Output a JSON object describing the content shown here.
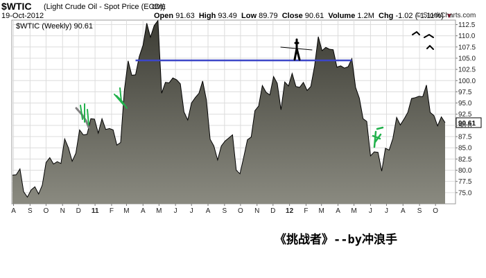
{
  "header": {
    "symbol": "$WTIC",
    "name": "(Light Crude Oil - Spot Price (EOD))",
    "exchange": "CME",
    "date": "19-Oct-2012",
    "open_label": "Open",
    "open": "91.63",
    "high_label": "High",
    "high": "93.49",
    "low_label": "Low",
    "low": "89.79",
    "close_label": "Close",
    "close": "90.61",
    "volume_label": "Volume",
    "volume": "1.2M",
    "chg_label": "Chg",
    "chg": "-1.02 (-1.11%)",
    "brand": "© StockCharts.com"
  },
  "caption": "《挑战者》--by冲浪手",
  "colors": {
    "area_top": "#3c3c34",
    "area_bottom": "#8a8a80",
    "line": "#000000",
    "resistance": "#3c46c8",
    "grid": "#dcdcdc",
    "chg_down": "#a01030",
    "annotation_green": "#22b14c",
    "annotation_gray": "#808080"
  },
  "chart_data": {
    "type": "area",
    "title": "$WTIC (Weekly) 90.61",
    "frequency": "Weekly",
    "last_value": 90.61,
    "ylim": [
      72.5,
      113.5
    ],
    "yticks": [
      75.0,
      77.5,
      80.0,
      82.5,
      85.0,
      87.5,
      90.0,
      92.5,
      95.0,
      97.5,
      100.0,
      102.5,
      105.0,
      107.5,
      110.0,
      112.5
    ],
    "x_tick_labels": [
      "A",
      "S",
      "O",
      "N",
      "D",
      "11",
      "F",
      "M",
      "A",
      "M",
      "J",
      "J",
      "A",
      "S",
      "O",
      "N",
      "D",
      "12",
      "F",
      "M",
      "A",
      "M",
      "J",
      "J",
      "A",
      "S",
      "O"
    ],
    "x_start": "2010-07-30",
    "x_end": "2012-10-19",
    "grid": true,
    "points": [
      [
        "2010-07-30",
        78.9
      ],
      [
        "2010-08-06",
        79.0
      ],
      [
        "2010-08-13",
        80.3
      ],
      [
        "2010-08-20",
        75.2
      ],
      [
        "2010-08-27",
        74.0
      ],
      [
        "2010-09-03",
        75.6
      ],
      [
        "2010-09-10",
        76.3
      ],
      [
        "2010-09-17",
        74.7
      ],
      [
        "2010-09-24",
        76.7
      ],
      [
        "2010-10-01",
        81.7
      ],
      [
        "2010-10-08",
        82.8
      ],
      [
        "2010-10-15",
        81.4
      ],
      [
        "2010-10-22",
        81.9
      ],
      [
        "2010-10-29",
        81.5
      ],
      [
        "2010-11-05",
        87.0
      ],
      [
        "2010-11-12",
        85.0
      ],
      [
        "2010-11-19",
        82.0
      ],
      [
        "2010-11-26",
        83.8
      ],
      [
        "2010-12-03",
        89.0
      ],
      [
        "2010-12-10",
        87.9
      ],
      [
        "2010-12-17",
        88.0
      ],
      [
        "2010-12-24",
        91.5
      ],
      [
        "2010-12-31",
        91.4
      ],
      [
        "2011-01-07",
        88.3
      ],
      [
        "2011-01-14",
        91.5
      ],
      [
        "2011-01-21",
        89.1
      ],
      [
        "2011-01-28",
        89.3
      ],
      [
        "2011-02-04",
        89.0
      ],
      [
        "2011-02-11",
        85.6
      ],
      [
        "2011-02-18",
        86.2
      ],
      [
        "2011-02-25",
        97.9
      ],
      [
        "2011-03-04",
        104.4
      ],
      [
        "2011-03-11",
        101.2
      ],
      [
        "2011-03-18",
        101.3
      ],
      [
        "2011-03-25",
        105.4
      ],
      [
        "2011-04-01",
        107.9
      ],
      [
        "2011-04-08",
        112.8
      ],
      [
        "2011-04-15",
        109.7
      ],
      [
        "2011-04-22",
        112.3
      ],
      [
        "2011-04-29",
        113.4
      ],
      [
        "2011-05-06",
        97.2
      ],
      [
        "2011-05-13",
        99.6
      ],
      [
        "2011-05-20",
        99.5
      ],
      [
        "2011-05-27",
        100.6
      ],
      [
        "2011-06-03",
        100.2
      ],
      [
        "2011-06-10",
        99.3
      ],
      [
        "2011-06-17",
        93.0
      ],
      [
        "2011-06-24",
        91.2
      ],
      [
        "2011-07-01",
        95.0
      ],
      [
        "2011-07-08",
        96.2
      ],
      [
        "2011-07-15",
        97.2
      ],
      [
        "2011-07-22",
        99.9
      ],
      [
        "2011-07-29",
        95.7
      ],
      [
        "2011-08-05",
        86.9
      ],
      [
        "2011-08-12",
        85.4
      ],
      [
        "2011-08-19",
        82.3
      ],
      [
        "2011-08-26",
        85.4
      ],
      [
        "2011-09-02",
        86.5
      ],
      [
        "2011-09-09",
        87.2
      ],
      [
        "2011-09-16",
        87.9
      ],
      [
        "2011-09-23",
        80.0
      ],
      [
        "2011-09-30",
        79.2
      ],
      [
        "2011-10-07",
        82.9
      ],
      [
        "2011-10-14",
        86.8
      ],
      [
        "2011-10-21",
        87.4
      ],
      [
        "2011-10-28",
        93.3
      ],
      [
        "2011-11-04",
        94.3
      ],
      [
        "2011-11-11",
        98.9
      ],
      [
        "2011-11-18",
        97.4
      ],
      [
        "2011-11-25",
        96.8
      ],
      [
        "2011-12-02",
        100.9
      ],
      [
        "2011-12-09",
        99.4
      ],
      [
        "2011-12-16",
        93.5
      ],
      [
        "2011-12-23",
        99.7
      ],
      [
        "2011-12-30",
        98.8
      ],
      [
        "2012-01-06",
        101.6
      ],
      [
        "2012-01-13",
        98.7
      ],
      [
        "2012-01-20",
        98.5
      ],
      [
        "2012-01-27",
        99.6
      ],
      [
        "2012-02-03",
        97.8
      ],
      [
        "2012-02-10",
        98.7
      ],
      [
        "2012-02-17",
        103.2
      ],
      [
        "2012-02-24",
        109.8
      ],
      [
        "2012-03-02",
        106.7
      ],
      [
        "2012-03-09",
        107.4
      ],
      [
        "2012-03-16",
        107.0
      ],
      [
        "2012-03-23",
        106.9
      ],
      [
        "2012-03-30",
        103.0
      ],
      [
        "2012-04-06",
        103.3
      ],
      [
        "2012-04-13",
        102.8
      ],
      [
        "2012-04-20",
        103.1
      ],
      [
        "2012-04-27",
        104.9
      ],
      [
        "2012-05-04",
        98.5
      ],
      [
        "2012-05-11",
        96.1
      ],
      [
        "2012-05-18",
        91.5
      ],
      [
        "2012-05-25",
        90.9
      ],
      [
        "2012-06-01",
        83.2
      ],
      [
        "2012-06-08",
        84.1
      ],
      [
        "2012-06-15",
        84.0
      ],
      [
        "2012-06-22",
        79.8
      ],
      [
        "2012-06-29",
        84.9
      ],
      [
        "2012-07-06",
        84.5
      ],
      [
        "2012-07-13",
        87.1
      ],
      [
        "2012-07-20",
        91.8
      ],
      [
        "2012-07-27",
        90.1
      ],
      [
        "2012-08-03",
        91.4
      ],
      [
        "2012-08-10",
        92.9
      ],
      [
        "2012-08-17",
        96.0
      ],
      [
        "2012-08-24",
        96.2
      ],
      [
        "2012-08-31",
        96.5
      ],
      [
        "2012-09-07",
        96.4
      ],
      [
        "2012-09-14",
        99.0
      ],
      [
        "2012-09-21",
        92.9
      ],
      [
        "2012-09-28",
        92.2
      ],
      [
        "2012-10-05",
        89.9
      ],
      [
        "2012-10-12",
        91.9
      ],
      [
        "2012-10-19",
        90.61
      ]
    ],
    "annotations": [
      {
        "type": "hline",
        "y": 104.5,
        "from": "2011-03-18",
        "to": "2012-04-27",
        "color": "#3c46c8"
      }
    ]
  }
}
